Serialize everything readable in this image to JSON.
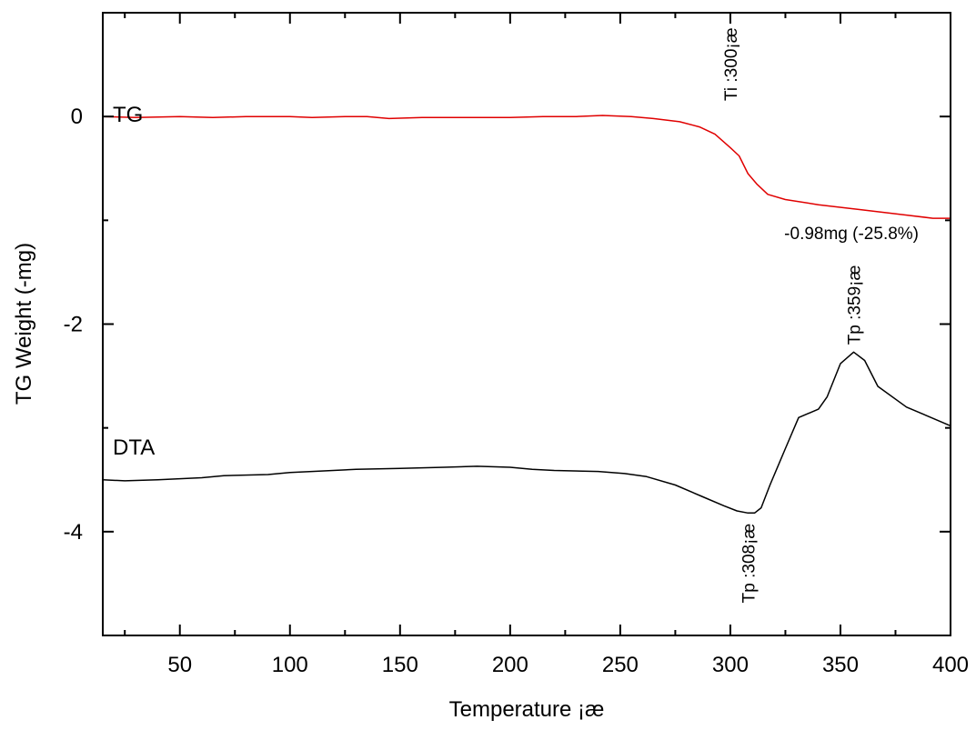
{
  "chart_data": {
    "type": "line",
    "xlabel": "Temperature ¡æ",
    "ylabel": "TG  Weight (-mg)",
    "xlim": [
      15,
      400
    ],
    "ylim": [
      -5,
      1
    ],
    "x_major_ticks": [
      50,
      100,
      150,
      200,
      250,
      300,
      350,
      400
    ],
    "x_minor_ticks": [
      25,
      75,
      125,
      175,
      225,
      275,
      325,
      375
    ],
    "y_major_ticks": [
      0,
      -2,
      -4
    ],
    "y_minor_ticks": [
      1,
      -1,
      -3,
      -5
    ],
    "grid": false,
    "series": [
      {
        "name": "TG",
        "color": "#e00000",
        "x": [
          15,
          30,
          50,
          65,
          80,
          100,
          110,
          125,
          135,
          145,
          160,
          180,
          200,
          215,
          230,
          242,
          255,
          265,
          277,
          286,
          293,
          300,
          304,
          308,
          312,
          317,
          325,
          340,
          360,
          380,
          392,
          400
        ],
        "y": [
          0,
          -0.01,
          0,
          -0.01,
          0,
          0,
          -0.01,
          0,
          0,
          -0.02,
          -0.01,
          -0.01,
          -0.01,
          0,
          0,
          0.01,
          0,
          -0.02,
          -0.05,
          -0.1,
          -0.17,
          -0.3,
          -0.38,
          -0.55,
          -0.65,
          -0.75,
          -0.8,
          -0.85,
          -0.9,
          -0.95,
          -0.98,
          -0.98
        ]
      },
      {
        "name": "DTA",
        "color": "#000000",
        "x": [
          15,
          25,
          40,
          60,
          70,
          90,
          100,
          110,
          130,
          150,
          170,
          185,
          200,
          210,
          220,
          240,
          252,
          262,
          275,
          287,
          297,
          303,
          308,
          311,
          314,
          318,
          325,
          331,
          340,
          344,
          350,
          356,
          361,
          367,
          380,
          400
        ],
        "y": [
          -3.5,
          -3.51,
          -3.5,
          -3.48,
          -3.46,
          -3.45,
          -3.43,
          -3.42,
          -3.4,
          -3.39,
          -3.38,
          -3.37,
          -3.38,
          -3.4,
          -3.41,
          -3.42,
          -3.44,
          -3.47,
          -3.55,
          -3.66,
          -3.75,
          -3.8,
          -3.82,
          -3.82,
          -3.77,
          -3.55,
          -3.2,
          -2.9,
          -2.82,
          -2.7,
          -2.38,
          -2.27,
          -2.35,
          -2.6,
          -2.8,
          -2.98
        ]
      }
    ],
    "labels": {
      "tg": "TG",
      "dta": "DTA"
    },
    "annotations": {
      "ti": {
        "text": "Ti :300¡æ",
        "x": 300,
        "y": 0.15,
        "rotation": -90
      },
      "tp1": {
        "text": "Tp :308¡æ",
        "x": 308,
        "y": -3.92,
        "rotation": -90
      },
      "tp2": {
        "text": "Tp :359¡æ",
        "x": 356,
        "y": -2.2,
        "rotation": -90
      },
      "loss": {
        "text": "-0.98mg (-25.8%)",
        "x": 355,
        "y": -1.18
      }
    }
  }
}
